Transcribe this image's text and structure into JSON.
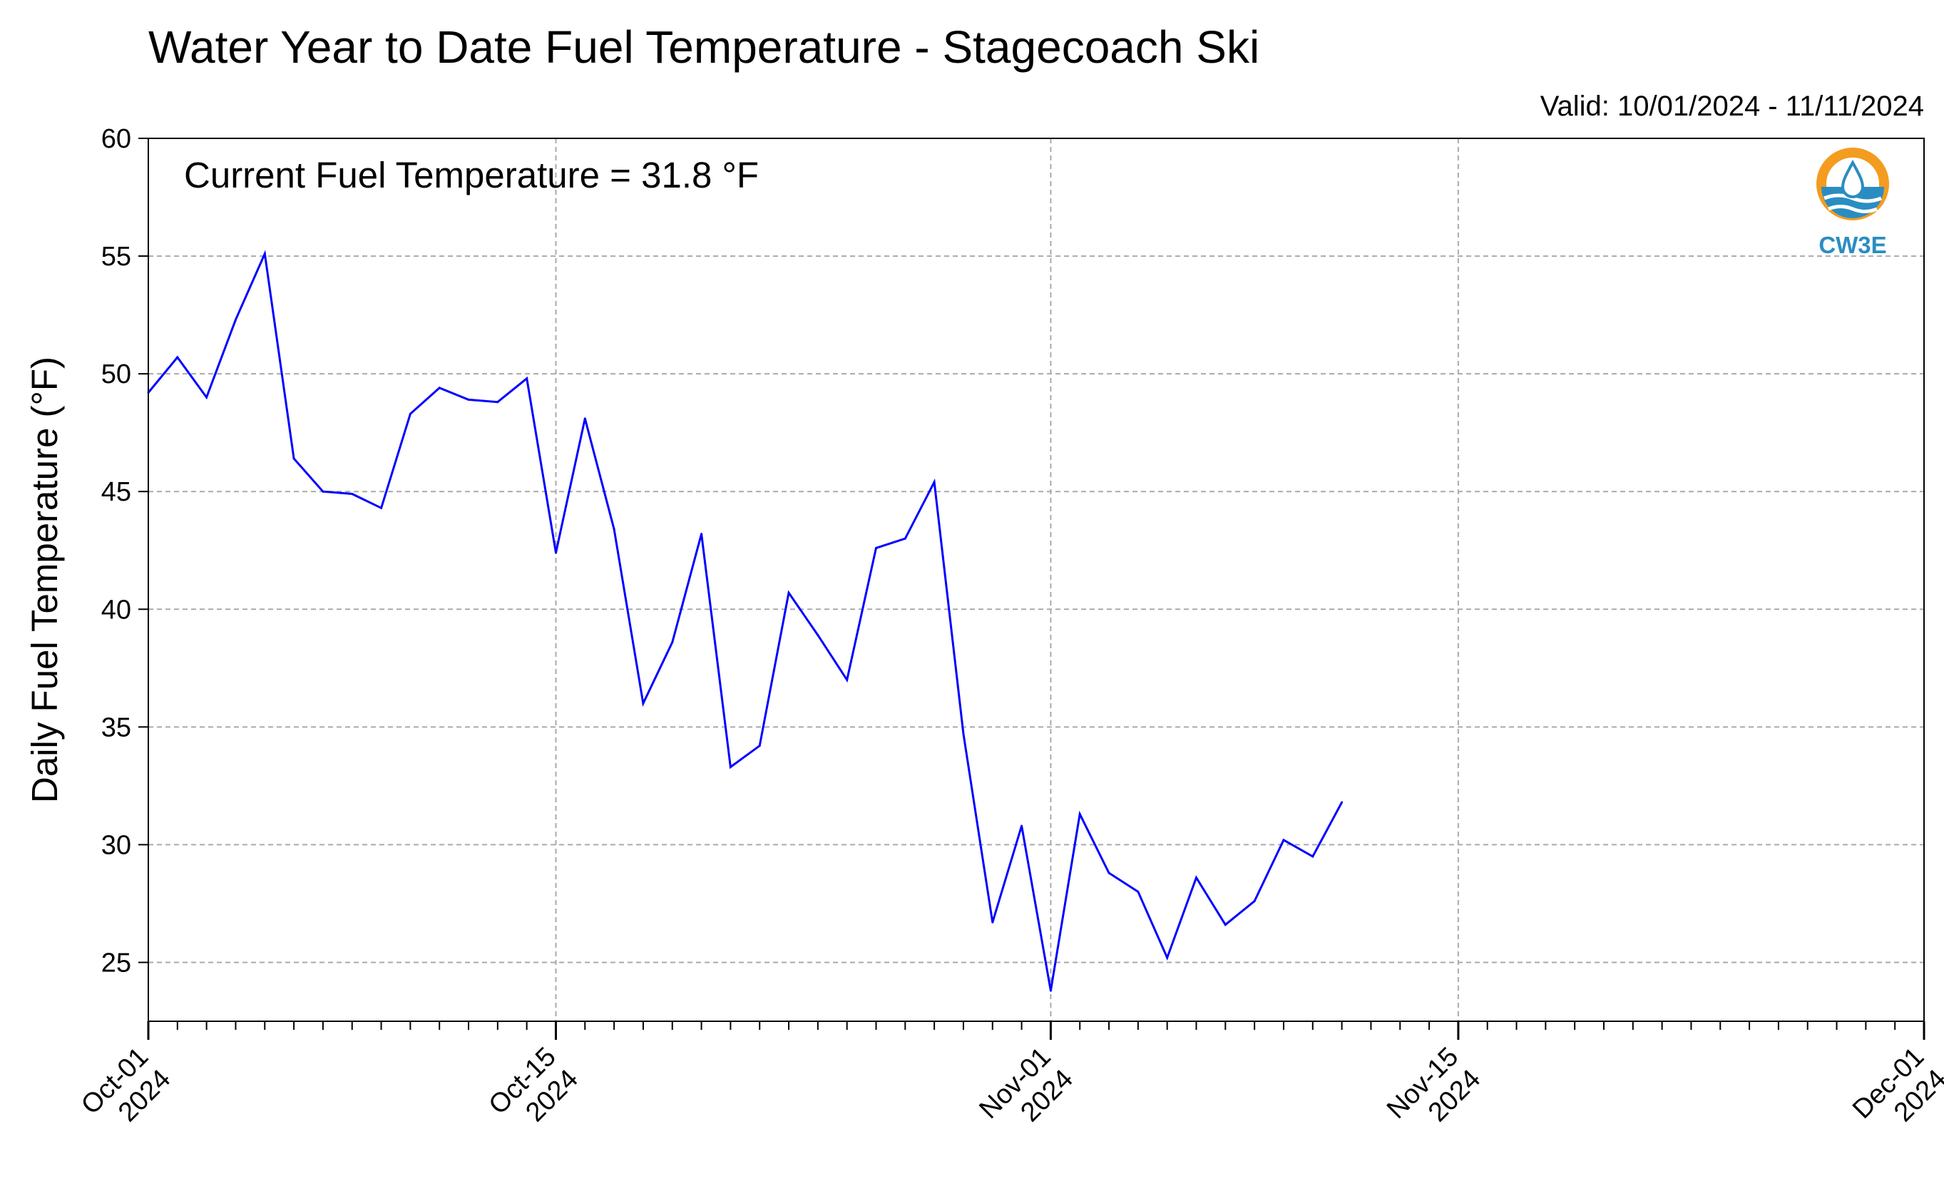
{
  "chart_data": {
    "type": "line",
    "title": "Water Year to Date Fuel Temperature - Stagecoach Ski",
    "subtitle": "Valid: 10/01/2024 - 11/11/2024",
    "annotation": "Current Fuel Temperature = 31.8 °F",
    "ylabel": "Daily Fuel Temperature (°F)",
    "xlabel": "",
    "ylim": [
      22.5,
      60
    ],
    "xlim": [
      "2024-10-01",
      "2024-12-01"
    ],
    "yticks": [
      25,
      30,
      35,
      40,
      45,
      50,
      55,
      60
    ],
    "xticks": [
      {
        "date": "2024-10-01",
        "label1": "Oct-01",
        "label2": "2024"
      },
      {
        "date": "2024-10-15",
        "label1": "Oct-15",
        "label2": "2024"
      },
      {
        "date": "2024-11-01",
        "label1": "Nov-01",
        "label2": "2024"
      },
      {
        "date": "2024-11-15",
        "label1": "Nov-15",
        "label2": "2024"
      },
      {
        "date": "2024-12-01",
        "label1": "Dec-01",
        "label2": "2024"
      }
    ],
    "grid": true,
    "series": [
      {
        "color": "#0000ff",
        "x": [
          "2024-10-01",
          "2024-10-02",
          "2024-10-03",
          "2024-10-04",
          "2024-10-05",
          "2024-10-06",
          "2024-10-07",
          "2024-10-08",
          "2024-10-09",
          "2024-10-10",
          "2024-10-11",
          "2024-10-12",
          "2024-10-13",
          "2024-10-14",
          "2024-10-15",
          "2024-10-16",
          "2024-10-17",
          "2024-10-18",
          "2024-10-19",
          "2024-10-20",
          "2024-10-21",
          "2024-10-22",
          "2024-10-23",
          "2024-10-24",
          "2024-10-25",
          "2024-10-26",
          "2024-10-27",
          "2024-10-28",
          "2024-10-29",
          "2024-10-30",
          "2024-10-31",
          "2024-11-01",
          "2024-11-02",
          "2024-11-03",
          "2024-11-04",
          "2024-11-05",
          "2024-11-06",
          "2024-11-07",
          "2024-11-08",
          "2024-11-09",
          "2024-11-10",
          "2024-11-11"
        ],
        "values": [
          49.2,
          50.7,
          49.0,
          52.3,
          55.1,
          46.4,
          45.0,
          44.9,
          44.3,
          48.3,
          49.4,
          48.9,
          48.8,
          49.8,
          42.4,
          48.1,
          43.4,
          36.0,
          38.6,
          43.2,
          33.3,
          34.2,
          40.7,
          38.9,
          37.0,
          42.6,
          43.0,
          45.4,
          34.7,
          26.7,
          30.8,
          23.8,
          31.3,
          28.8,
          28.0,
          25.2,
          28.6,
          26.6,
          27.6,
          30.2,
          29.5,
          31.8
        ]
      }
    ]
  },
  "logo": {
    "text": "CW3E",
    "colors": {
      "ring": "#f39c1f",
      "water": "#2a8dc2",
      "drop": "#2a8dc2"
    }
  },
  "style": {
    "line_color": "#0000ff",
    "grid_color": "#aaaaaa"
  }
}
